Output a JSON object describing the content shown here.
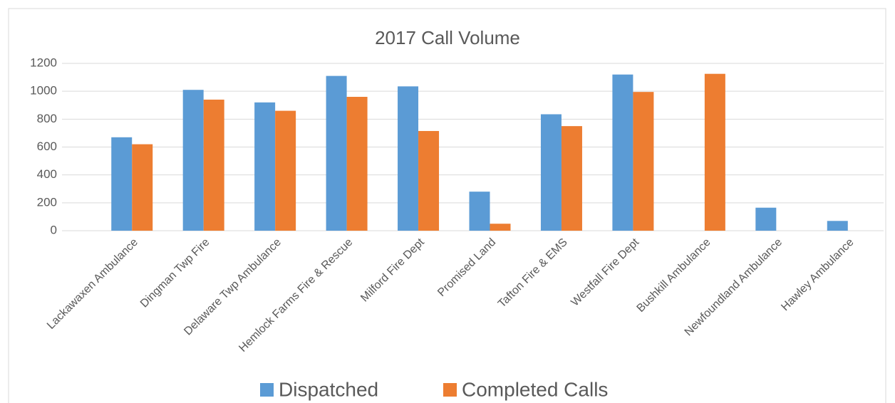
{
  "chart_data": {
    "type": "bar",
    "title": "2017 Call Volume",
    "categories": [
      "Lackawaxen Ambulance",
      "Dingman Twp Fire",
      "Delaware Twp Ambulance",
      "Hemlock Farms Fire & Rescue",
      "Milford Fire Dept",
      "Promised Land",
      "Tafton Fire & EMS",
      "Westfall Fire Dept",
      "Bushkill Ambulance",
      "Newfoundland Ambulance",
      "Hawley Ambulance"
    ],
    "series": [
      {
        "name": "Dispatched",
        "color": "#5b9bd5",
        "values": [
          670,
          1010,
          920,
          1110,
          1035,
          280,
          835,
          1120,
          0,
          165,
          70
        ]
      },
      {
        "name": "Completed Calls",
        "color": "#ed7d31",
        "values": [
          620,
          940,
          860,
          960,
          715,
          50,
          750,
          995,
          1125,
          0,
          0
        ]
      }
    ],
    "ylim": [
      0,
      1200
    ],
    "yticks": [
      0,
      200,
      400,
      600,
      800,
      1000,
      1200
    ],
    "grid": true,
    "legend": "bottom"
  }
}
